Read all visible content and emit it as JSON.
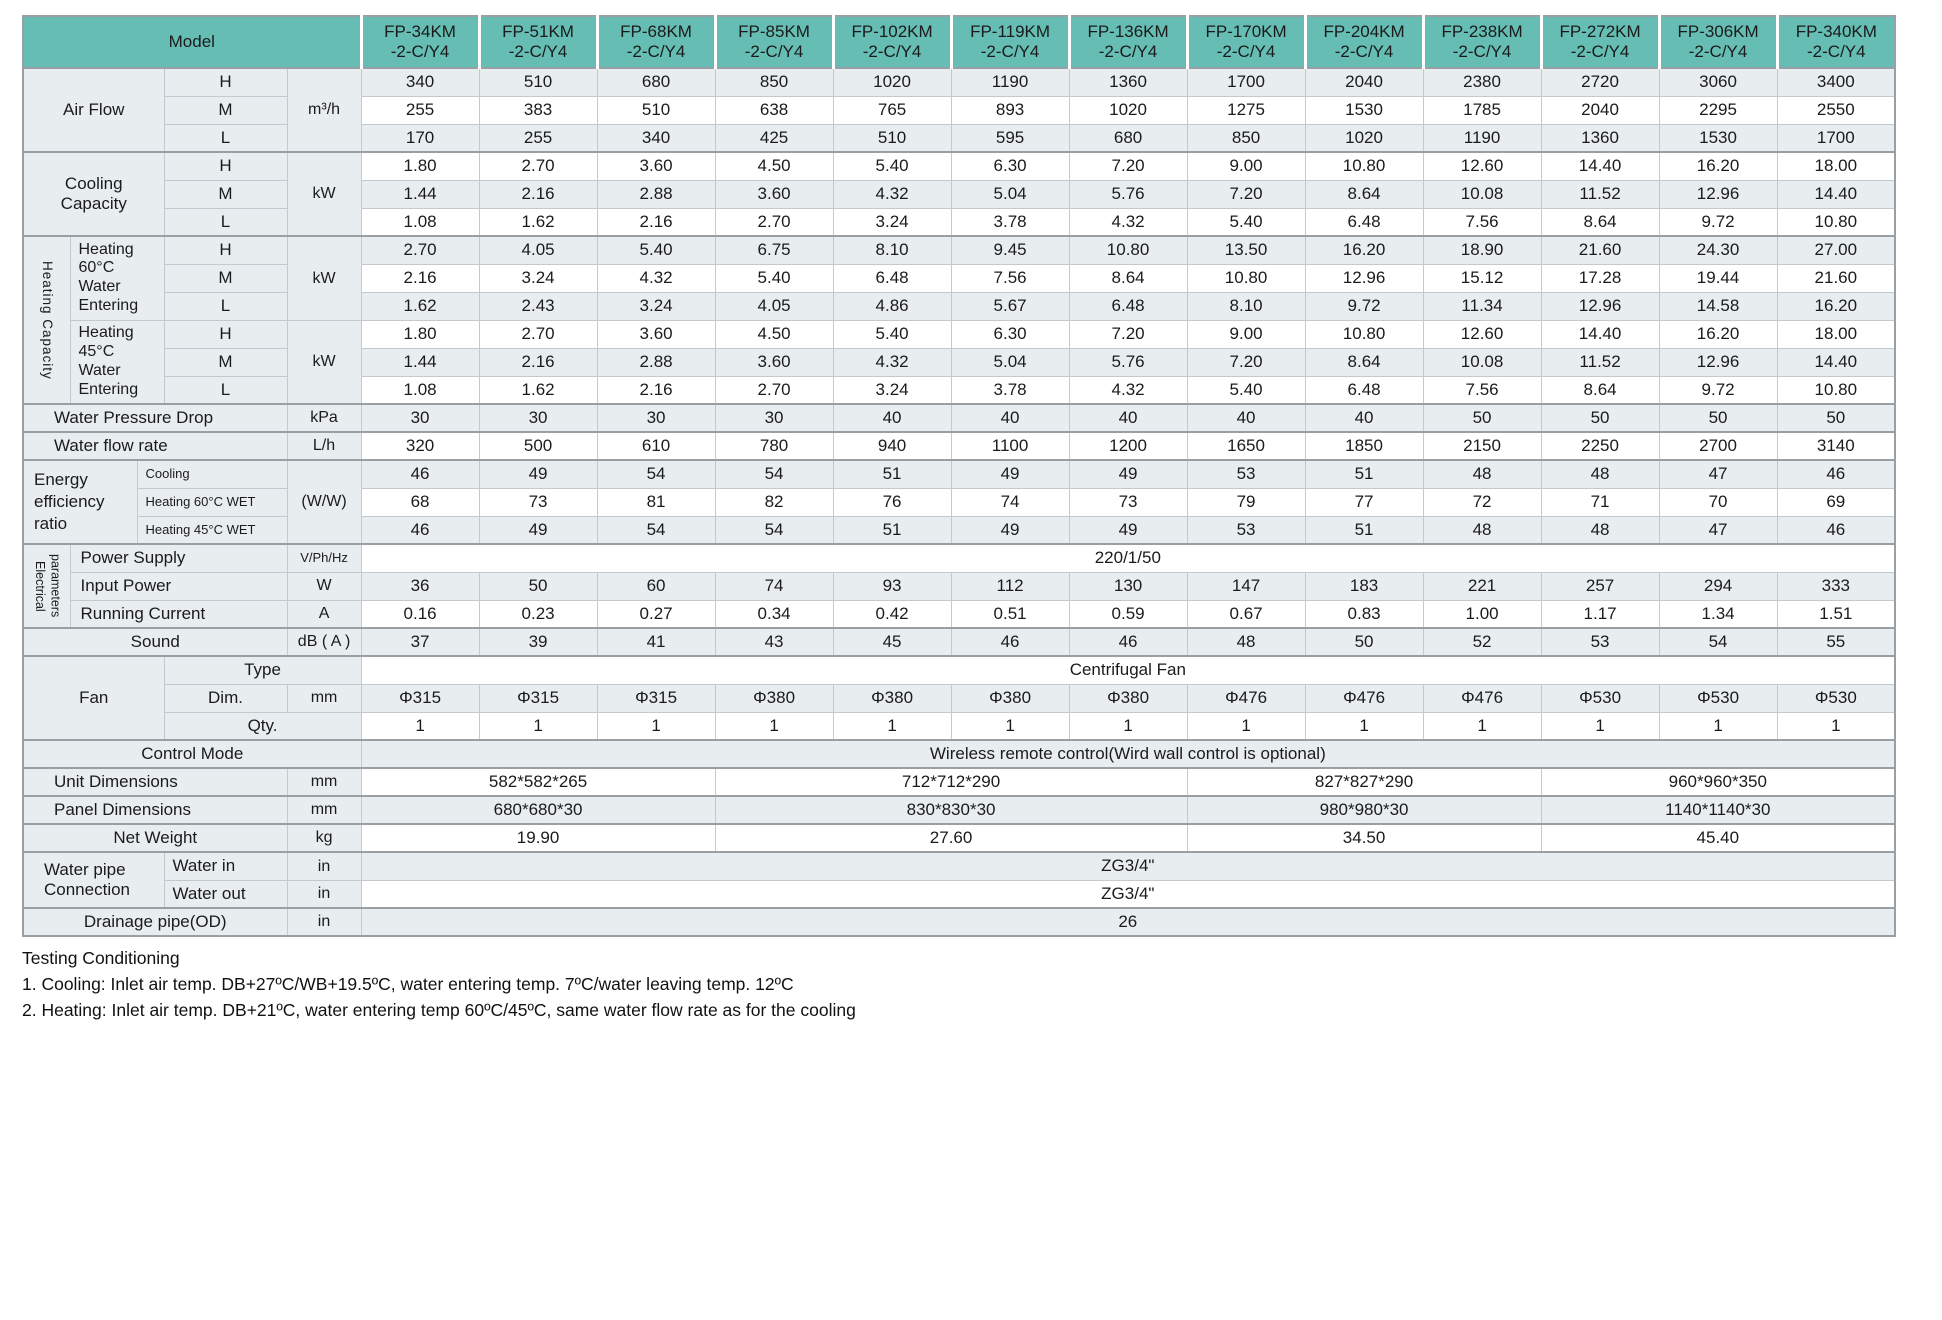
{
  "header": {
    "model_label": "Model",
    "suffix": "-2-C/Y4",
    "models": [
      "FP-34KM",
      "FP-51KM",
      "FP-68KM",
      "FP-85KM",
      "FP-102KM",
      "FP-119KM",
      "FP-136KM",
      "FP-170KM",
      "FP-204KM",
      "FP-238KM",
      "FP-272KM",
      "FP-306KM",
      "FP-340KM"
    ]
  },
  "rows": {
    "air_flow": {
      "label": "Air Flow",
      "unit": "m³/h",
      "speeds": [
        "H",
        "M",
        "L"
      ]
    },
    "cooling": {
      "label": "Cooling\nCapacity",
      "unit": "kW",
      "speeds": [
        "H",
        "M",
        "L"
      ]
    },
    "heating_group": {
      "label": "Heating Capacity"
    },
    "heating60": {
      "label": "Heating\n60°C\nWater\nEntering",
      "unit": "kW",
      "speeds": [
        "H",
        "M",
        "L"
      ]
    },
    "heating45": {
      "label": "Heating\n45°C\nWater\nEntering",
      "unit": "kW",
      "speeds": [
        "H",
        "M",
        "L"
      ]
    },
    "wpd": {
      "label": "Water Pressure Drop",
      "unit": "kPa"
    },
    "wfr": {
      "label": "Water flow rate",
      "unit": "L/h"
    },
    "eer": {
      "label": "Energy\nefficiency\nratio",
      "unit": "(W/W)",
      "subs": [
        "Cooling",
        "Heating 60°C WET",
        "Heating 45°C WET"
      ]
    },
    "electrical": {
      "label": "Electrical\nparameters",
      "power_supply": "Power Supply",
      "ps_unit": "V/Ph/Hz",
      "input_power": "Input Power",
      "ip_unit": "W",
      "running_current": "Running Current",
      "rc_unit": "A"
    },
    "sound": {
      "label": "Sound",
      "unit": "dB ( A )"
    },
    "fan": {
      "label": "Fan",
      "type_label": "Type",
      "dim_label": "Dim.",
      "dim_unit": "mm",
      "qty_label": "Qty."
    },
    "control": {
      "label": "Control Mode"
    },
    "unit_dim": {
      "label": "Unit Dimensions",
      "unit": "mm"
    },
    "panel_dim": {
      "label": "Panel Dimensions",
      "unit": "mm"
    },
    "net_weight": {
      "label": "Net Weight",
      "unit": "kg"
    },
    "water_pipe": {
      "label": "Water pipe\nConnection",
      "in_label": "Water in",
      "out_label": "Water out",
      "unit": "in"
    },
    "drainage": {
      "label": "Drainage pipe(OD)",
      "unit": "in"
    }
  },
  "values": {
    "air_h": [
      "340",
      "510",
      "680",
      "850",
      "1020",
      "1190",
      "1360",
      "1700",
      "2040",
      "2380",
      "2720",
      "3060",
      "3400"
    ],
    "air_m": [
      "255",
      "383",
      "510",
      "638",
      "765",
      "893",
      "1020",
      "1275",
      "1530",
      "1785",
      "2040",
      "2295",
      "2550"
    ],
    "air_l": [
      "170",
      "255",
      "340",
      "425",
      "510",
      "595",
      "680",
      "850",
      "1020",
      "1190",
      "1360",
      "1530",
      "1700"
    ],
    "cool_h": [
      "1.80",
      "2.70",
      "3.60",
      "4.50",
      "5.40",
      "6.30",
      "7.20",
      "9.00",
      "10.80",
      "12.60",
      "14.40",
      "16.20",
      "18.00"
    ],
    "cool_m": [
      "1.44",
      "2.16",
      "2.88",
      "3.60",
      "4.32",
      "5.04",
      "5.76",
      "7.20",
      "8.64",
      "10.08",
      "11.52",
      "12.96",
      "14.40"
    ],
    "cool_l": [
      "1.08",
      "1.62",
      "2.16",
      "2.70",
      "3.24",
      "3.78",
      "4.32",
      "5.40",
      "6.48",
      "7.56",
      "8.64",
      "9.72",
      "10.80"
    ],
    "h60_h": [
      "2.70",
      "4.05",
      "5.40",
      "6.75",
      "8.10",
      "9.45",
      "10.80",
      "13.50",
      "16.20",
      "18.90",
      "21.60",
      "24.30",
      "27.00"
    ],
    "h60_m": [
      "2.16",
      "3.24",
      "4.32",
      "5.40",
      "6.48",
      "7.56",
      "8.64",
      "10.80",
      "12.96",
      "15.12",
      "17.28",
      "19.44",
      "21.60"
    ],
    "h60_l": [
      "1.62",
      "2.43",
      "3.24",
      "4.05",
      "4.86",
      "5.67",
      "6.48",
      "8.10",
      "9.72",
      "11.34",
      "12.96",
      "14.58",
      "16.20"
    ],
    "h45_h": [
      "1.80",
      "2.70",
      "3.60",
      "4.50",
      "5.40",
      "6.30",
      "7.20",
      "9.00",
      "10.80",
      "12.60",
      "14.40",
      "16.20",
      "18.00"
    ],
    "h45_m": [
      "1.44",
      "2.16",
      "2.88",
      "3.60",
      "4.32",
      "5.04",
      "5.76",
      "7.20",
      "8.64",
      "10.08",
      "11.52",
      "12.96",
      "14.40"
    ],
    "h45_l": [
      "1.08",
      "1.62",
      "2.16",
      "2.70",
      "3.24",
      "3.78",
      "4.32",
      "5.40",
      "6.48",
      "7.56",
      "8.64",
      "9.72",
      "10.80"
    ],
    "wpd": [
      "30",
      "30",
      "30",
      "30",
      "40",
      "40",
      "40",
      "40",
      "40",
      "50",
      "50",
      "50",
      "50"
    ],
    "wfr": [
      "320",
      "500",
      "610",
      "780",
      "940",
      "1100",
      "1200",
      "1650",
      "1850",
      "2150",
      "2250",
      "2700",
      "3140"
    ],
    "eer_cool": [
      "46",
      "49",
      "54",
      "54",
      "51",
      "49",
      "49",
      "53",
      "51",
      "48",
      "48",
      "47",
      "46"
    ],
    "eer_h60": [
      "68",
      "73",
      "81",
      "82",
      "76",
      "74",
      "73",
      "79",
      "77",
      "72",
      "71",
      "70",
      "69"
    ],
    "eer_h45": [
      "46",
      "49",
      "54",
      "54",
      "51",
      "49",
      "49",
      "53",
      "51",
      "48",
      "48",
      "47",
      "46"
    ],
    "power_supply": "220/1/50",
    "input_power": [
      "36",
      "50",
      "60",
      "74",
      "93",
      "112",
      "130",
      "147",
      "183",
      "221",
      "257",
      "294",
      "333"
    ],
    "running_current": [
      "0.16",
      "0.23",
      "0.27",
      "0.34",
      "0.42",
      "0.51",
      "0.59",
      "0.67",
      "0.83",
      "1.00",
      "1.17",
      "1.34",
      "1.51"
    ],
    "sound": [
      "37",
      "39",
      "41",
      "43",
      "45",
      "46",
      "46",
      "48",
      "50",
      "52",
      "53",
      "54",
      "55"
    ],
    "fan_type": "Centrifugal Fan",
    "fan_dim": [
      "Φ315",
      "Φ315",
      "Φ315",
      "Φ380",
      "Φ380",
      "Φ380",
      "Φ380",
      "Φ476",
      "Φ476",
      "Φ476",
      "Φ530",
      "Φ530",
      "Φ530"
    ],
    "fan_qty": [
      "1",
      "1",
      "1",
      "1",
      "1",
      "1",
      "1",
      "1",
      "1",
      "1",
      "1",
      "1",
      "1"
    ],
    "control": "Wireless remote control(Wird wall control is optional)",
    "unit_dim": [
      "582*582*265",
      "712*712*290",
      "827*827*290",
      "960*960*350"
    ],
    "panel_dim": [
      "680*680*30",
      "830*830*30",
      "980*980*30",
      "1140*1140*30"
    ],
    "net_weight": [
      "19.90",
      "27.60",
      "34.50",
      "45.40"
    ],
    "water_in": "ZG3/4\"",
    "water_out": "ZG3/4\"",
    "drainage": "26"
  },
  "notes": {
    "title": "Testing Conditioning",
    "items": [
      "1. Cooling: Inlet air temp. DB+27ºC/WB+19.5ºC, water entering temp. 7ºC/water leaving temp. 12ºC",
      "2. Heating: Inlet air temp. DB+21ºC, water entering temp 60ºC/45ºC, same water flow rate as for the cooling"
    ]
  }
}
